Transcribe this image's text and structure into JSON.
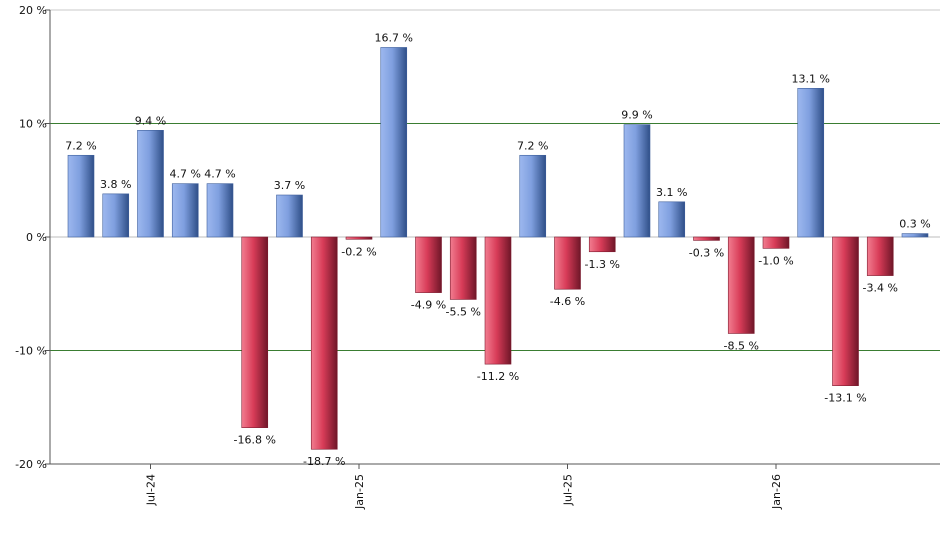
{
  "chart_data": {
    "type": "bar",
    "title": "",
    "xlabel": "",
    "ylabel": "",
    "ylim": [
      -20,
      20
    ],
    "y_ticks": [
      "20 %",
      "10 %",
      "0 %",
      "-10 %",
      "-20 %"
    ],
    "y_tick_values": [
      20,
      10,
      0,
      -10,
      -20
    ],
    "x_ticks": [
      "Jul-24",
      "Jan-25",
      "Jul-25",
      "Jan-26"
    ],
    "x_tick_index": [
      2,
      8,
      14,
      20
    ],
    "series": [
      {
        "values": [
          7.2,
          3.8,
          9.4,
          4.7,
          4.7,
          -16.8,
          3.7,
          -18.7,
          -0.2,
          16.7,
          -4.9,
          -5.5,
          -11.2,
          7.2,
          -4.6,
          -1.3,
          9.9,
          3.1,
          -0.3,
          -8.5,
          -1.0,
          13.1,
          -13.1,
          -3.4,
          0.3
        ],
        "labels": [
          "7.2 %",
          "3.8 %",
          "9.4 %",
          "4.7 %",
          "4.7 %",
          "-16.8 %",
          "3.7 %",
          "-18.7 %",
          "-0.2 %",
          "16.7 %",
          "-4.9 %",
          "-5.5 %",
          "-11.2 %",
          "7.2 %",
          "-4.6 %",
          "-1.3 %",
          "9.9 %",
          "3.1 %",
          "-0.3 %",
          "-8.5 %",
          "-1.0 %",
          "13.1 %",
          "-13.1 %",
          "-3.4 %",
          "0.3 %"
        ]
      }
    ],
    "grid": "horizontal lines at ±10 %",
    "colors": {
      "positive": "#6f93d8",
      "negative": "#d33b57",
      "gridline": "#3a7d32",
      "axis": "#555555",
      "zero_line": "#bdbdbd"
    }
  }
}
